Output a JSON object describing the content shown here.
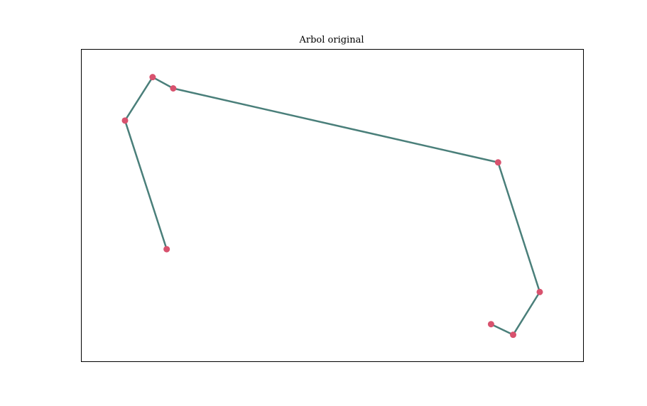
{
  "chart_data": {
    "type": "line",
    "title": "Arbol original",
    "xlabel": "",
    "ylabel": "",
    "ticks_visible": false,
    "grid": false,
    "xlim": [
      0,
      100
    ],
    "ylim": [
      0,
      100
    ],
    "series": [
      {
        "points": [
          [
            17.0,
            36.0
          ],
          [
            8.7,
            77.2
          ],
          [
            14.2,
            91.1
          ],
          [
            18.3,
            87.5
          ],
          [
            83.0,
            63.8
          ],
          [
            91.3,
            22.3
          ],
          [
            86.0,
            8.6
          ],
          [
            81.6,
            12.0
          ]
        ]
      }
    ]
  },
  "colors": {
    "line": "#4a7f7a",
    "marker": "#d8526e",
    "frame": "#000000",
    "background": "#ffffff"
  }
}
